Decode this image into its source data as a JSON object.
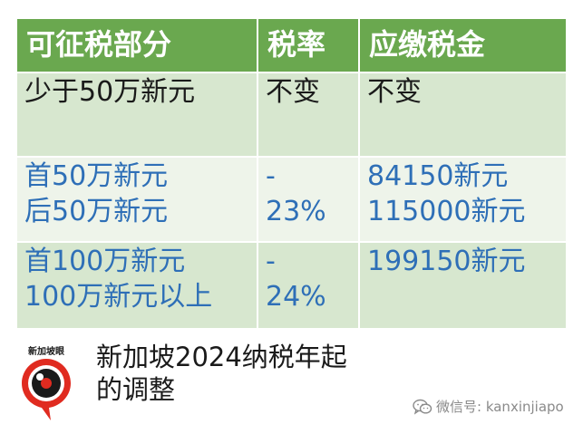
{
  "table": {
    "headers": [
      "可征税部分",
      "税率",
      "应缴税金"
    ],
    "rows": [
      [
        [
          "少于50万新元"
        ],
        [
          "不变"
        ],
        [
          "不变"
        ]
      ],
      [
        [
          "首50万新元",
          "后50万新元"
        ],
        [
          "-",
          "23%"
        ],
        [
          "84150新元",
          "115000新元"
        ]
      ],
      [
        [
          "首100万新元",
          "100万新元以上"
        ],
        [
          "-",
          "24%"
        ],
        [
          "199150新元"
        ]
      ]
    ]
  },
  "logo": {
    "text": "新加坡眼",
    "icon": "eye-logo-icon"
  },
  "caption": {
    "line1": "新加坡2024纳税年起",
    "line2": "的调整"
  },
  "watermark": {
    "icon": "wechat-icon",
    "text": "微信号: kanxinjiapo"
  },
  "colors": {
    "header_bg": "#6aa84f",
    "row_dark": "#d7e7cf",
    "row_light": "#eef4ea",
    "blue_text": "#2e6fb7",
    "logo_red": "#e02b20"
  }
}
